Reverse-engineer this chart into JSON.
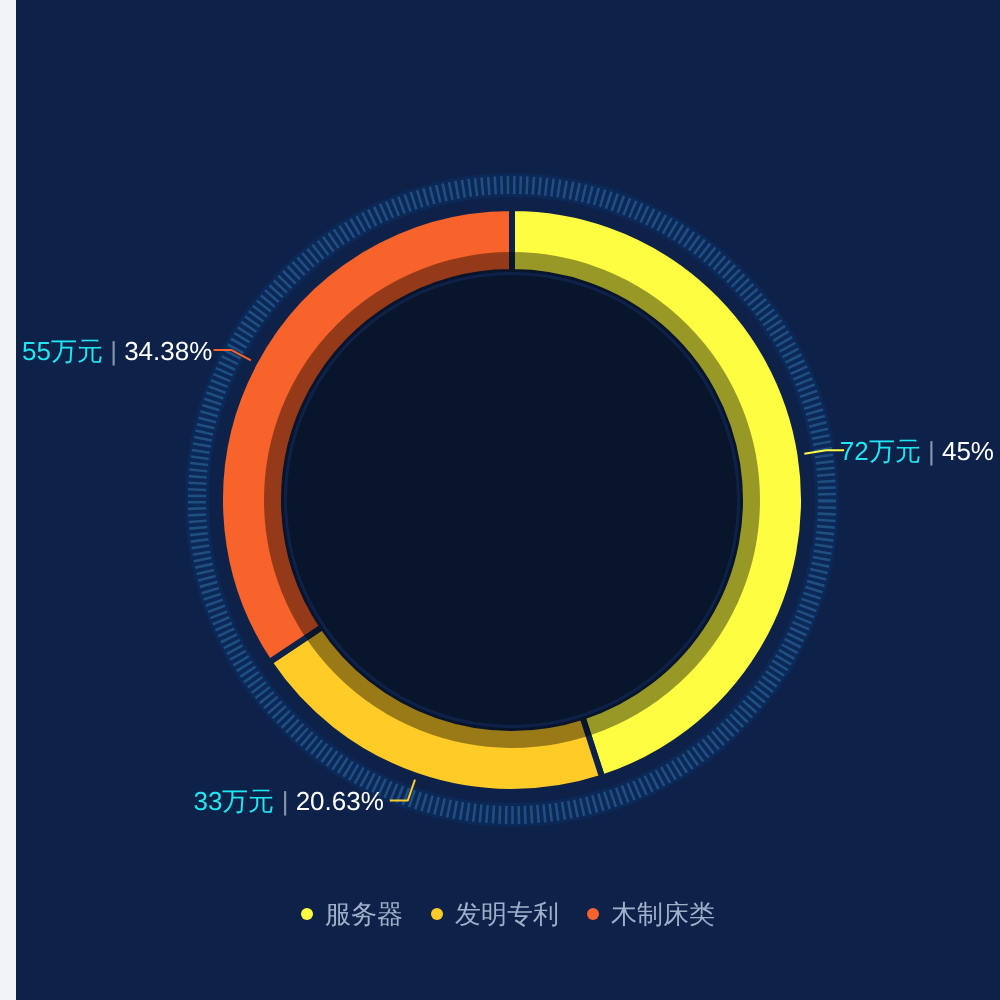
{
  "chart_data": {
    "type": "donut",
    "categories": [
      "服务器",
      "发明专利",
      "木制床类"
    ],
    "values": [
      72,
      33,
      55
    ],
    "colors": [
      "#fefd42",
      "#ffcb27",
      "#f8622b"
    ],
    "value_labels": [
      "72万元 | 45%",
      "33万元 | 20.63%",
      "55万元 | 34.38%"
    ],
    "legend": "bottom"
  }
}
